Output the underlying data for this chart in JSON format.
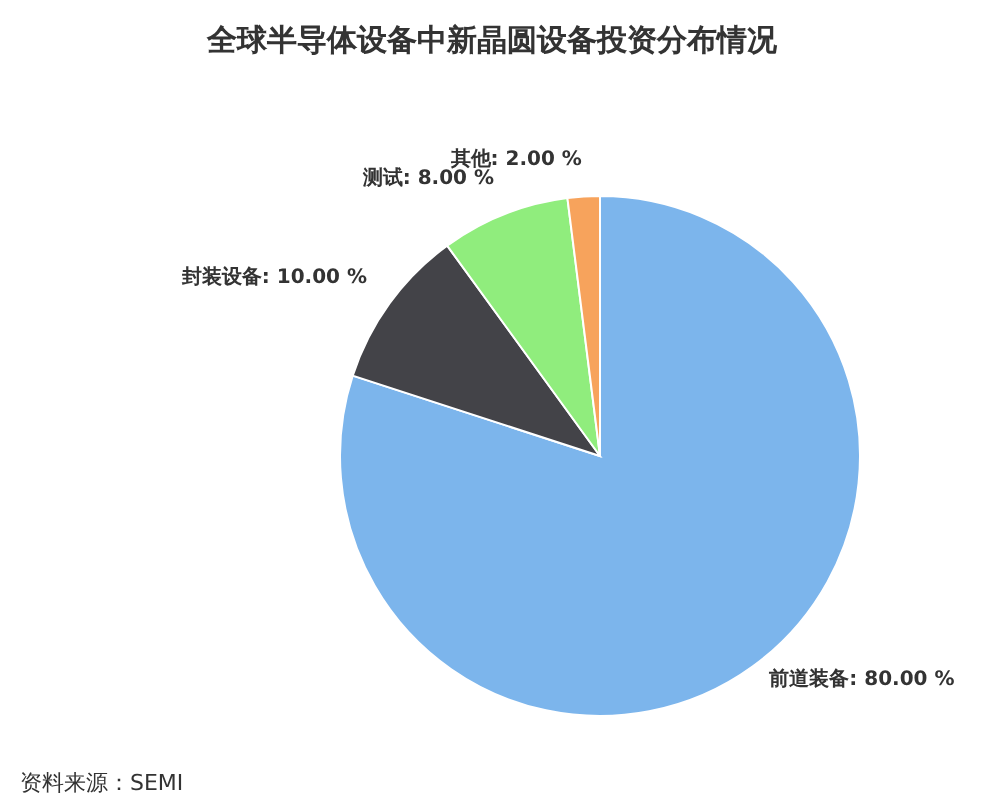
{
  "chart_data": {
    "type": "pie",
    "title": "全球半导体设备中新晶圆设备投资分布情况",
    "categories": [
      "前道装备",
      "封装设备",
      "测试",
      "其他"
    ],
    "values": [
      80,
      10,
      8,
      2
    ],
    "colors": [
      "#7cb5ec",
      "#434348",
      "#90ed7d",
      "#f7a35c"
    ],
    "value_labels": [
      "80.00 %",
      "10.00 %",
      "8.00 %",
      "2.00 %"
    ],
    "legend": false,
    "annotations": [
      "资料来源：SEMI"
    ]
  }
}
